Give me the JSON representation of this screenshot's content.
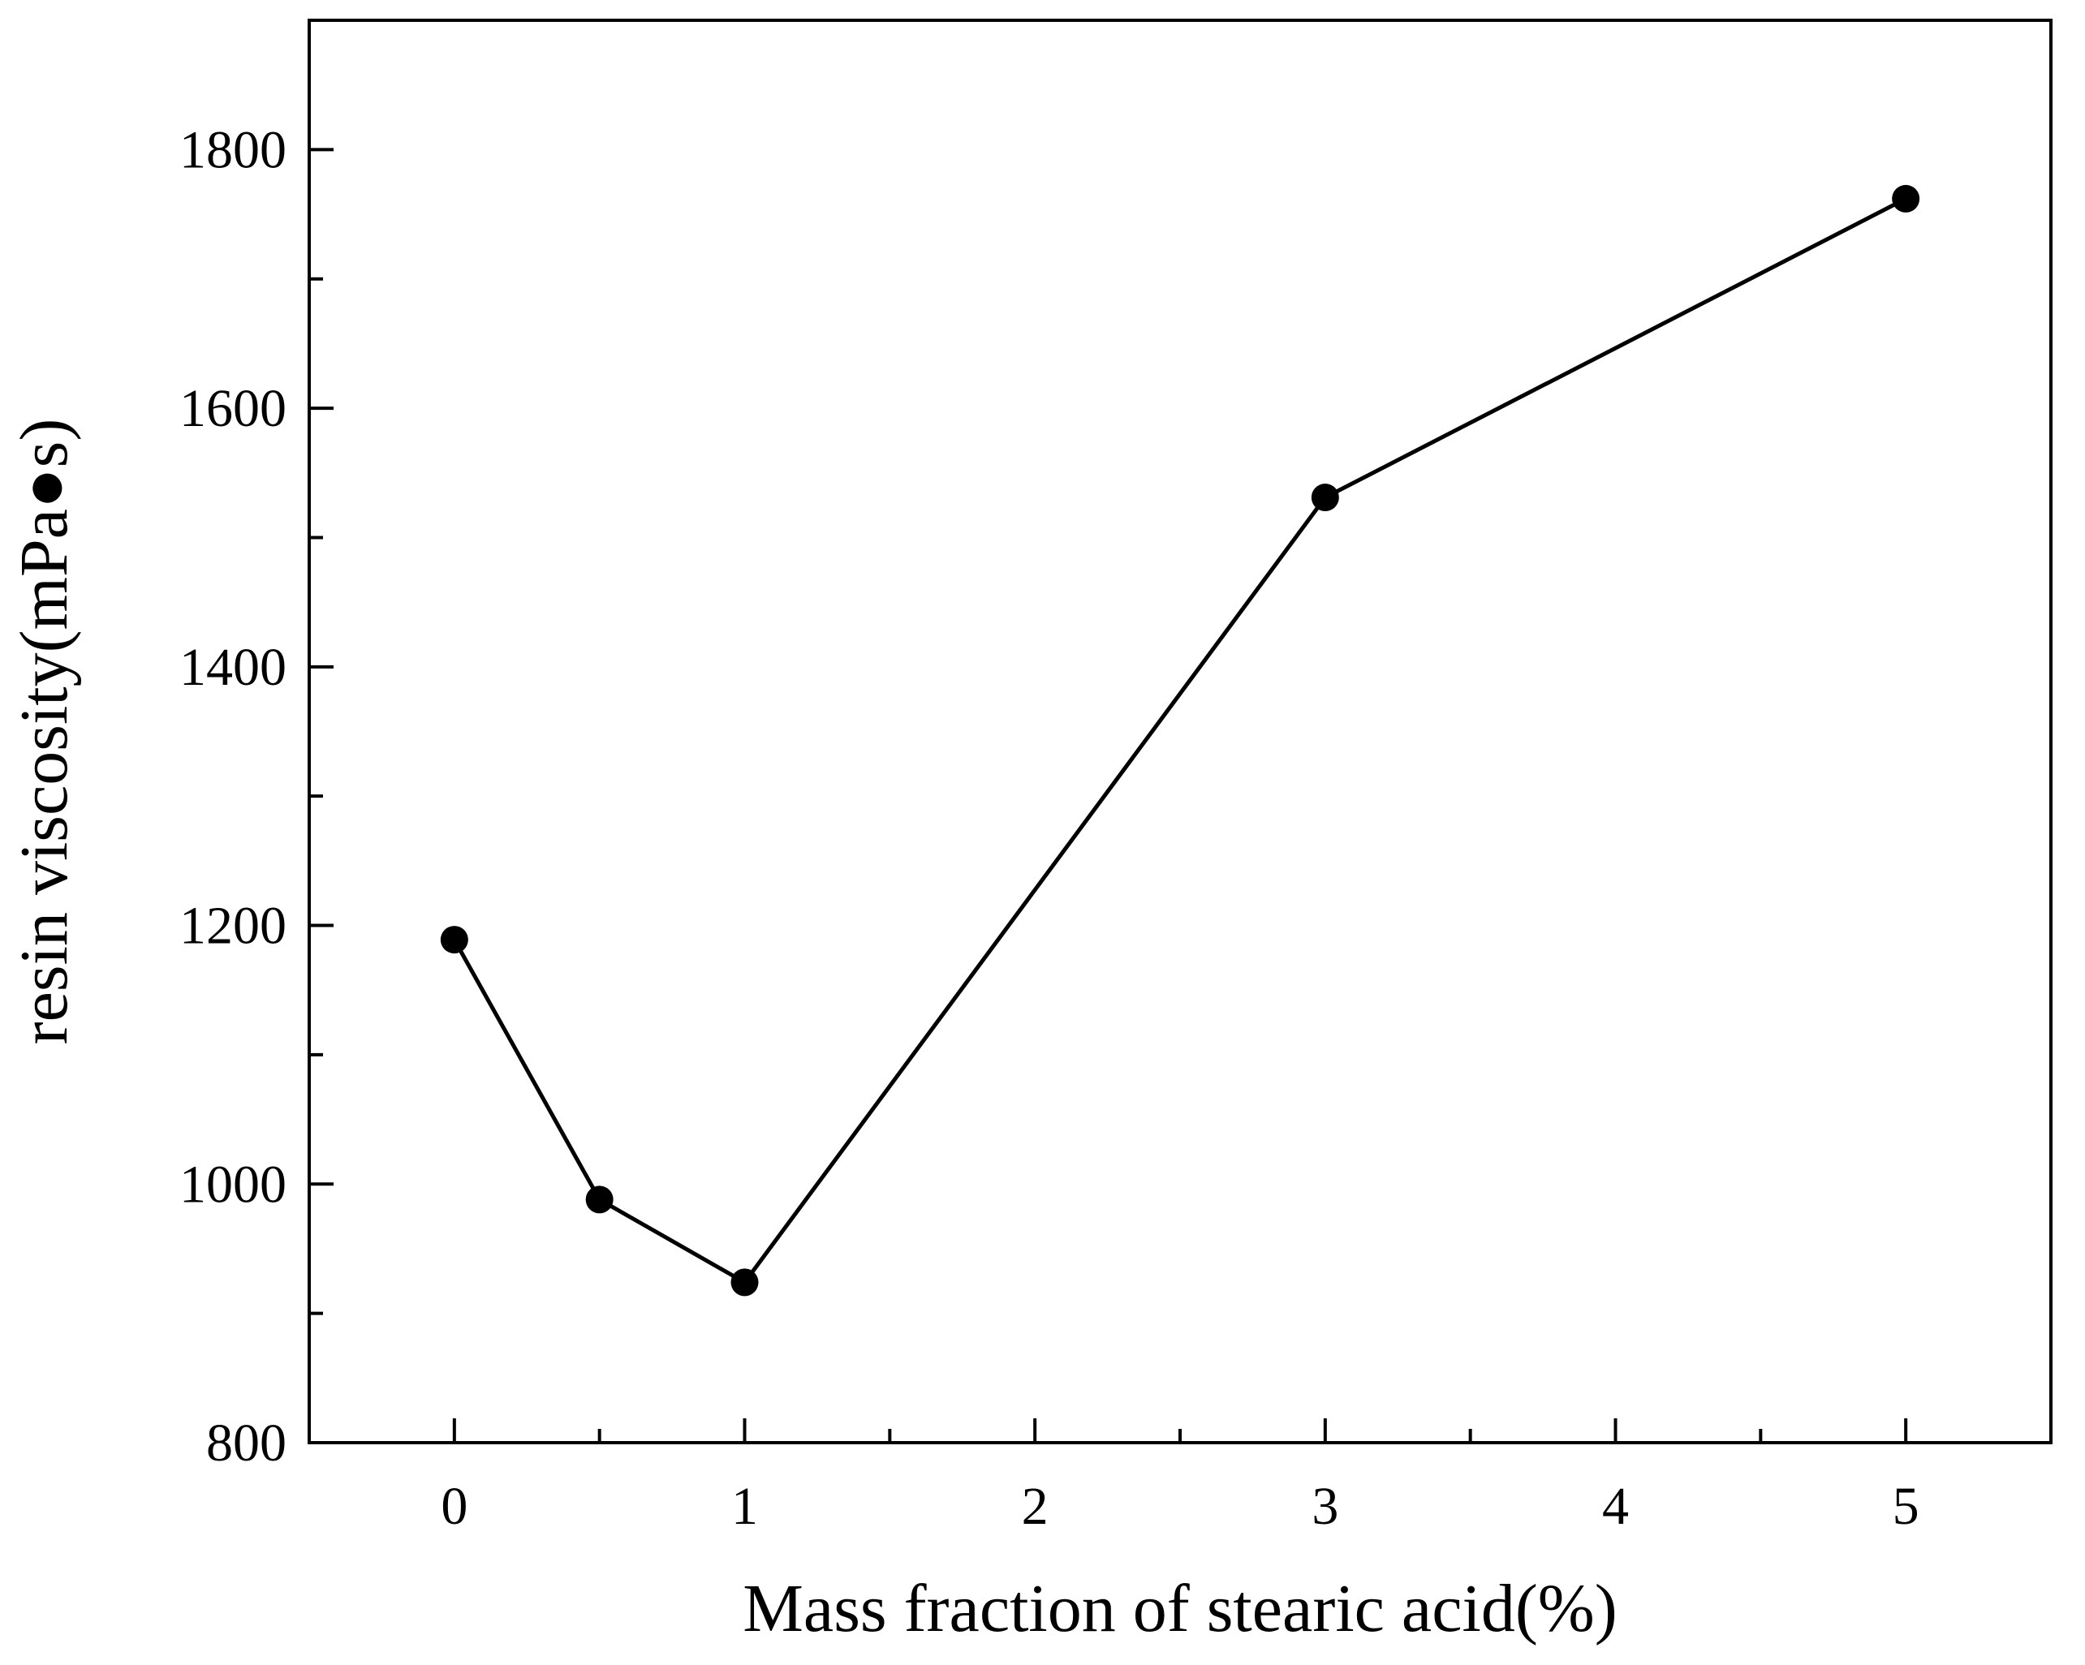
{
  "chart_data": {
    "type": "line",
    "title": "",
    "xlabel": "Mass fraction of stearic acid(%)",
    "ylabel": "resin viscosity(mPa●s)",
    "xlim": [
      -0.5,
      5.5
    ],
    "ylim": [
      800,
      1900
    ],
    "x_ticks": [
      0,
      1,
      2,
      3,
      4,
      5
    ],
    "x_tick_labels": [
      "0",
      "1",
      "2",
      "3",
      "4",
      "5"
    ],
    "x_minor_ticks": [
      0.5,
      1.5,
      2.5,
      3.5,
      4.5
    ],
    "y_ticks": [
      800,
      1000,
      1200,
      1400,
      1600,
      1800
    ],
    "y_tick_labels": [
      "800",
      "1000",
      "1200",
      "1400",
      "1600",
      "1800"
    ],
    "y_minor_ticks": [
      900,
      1100,
      1300,
      1500,
      1700
    ],
    "grid": false,
    "legend": "none",
    "series": [
      {
        "name": "resin viscosity",
        "marker": "circle",
        "color": "#000000",
        "x": [
          0,
          0.5,
          1,
          3,
          5
        ],
        "values": [
          1189,
          988,
          924,
          1531,
          1762
        ]
      }
    ]
  }
}
